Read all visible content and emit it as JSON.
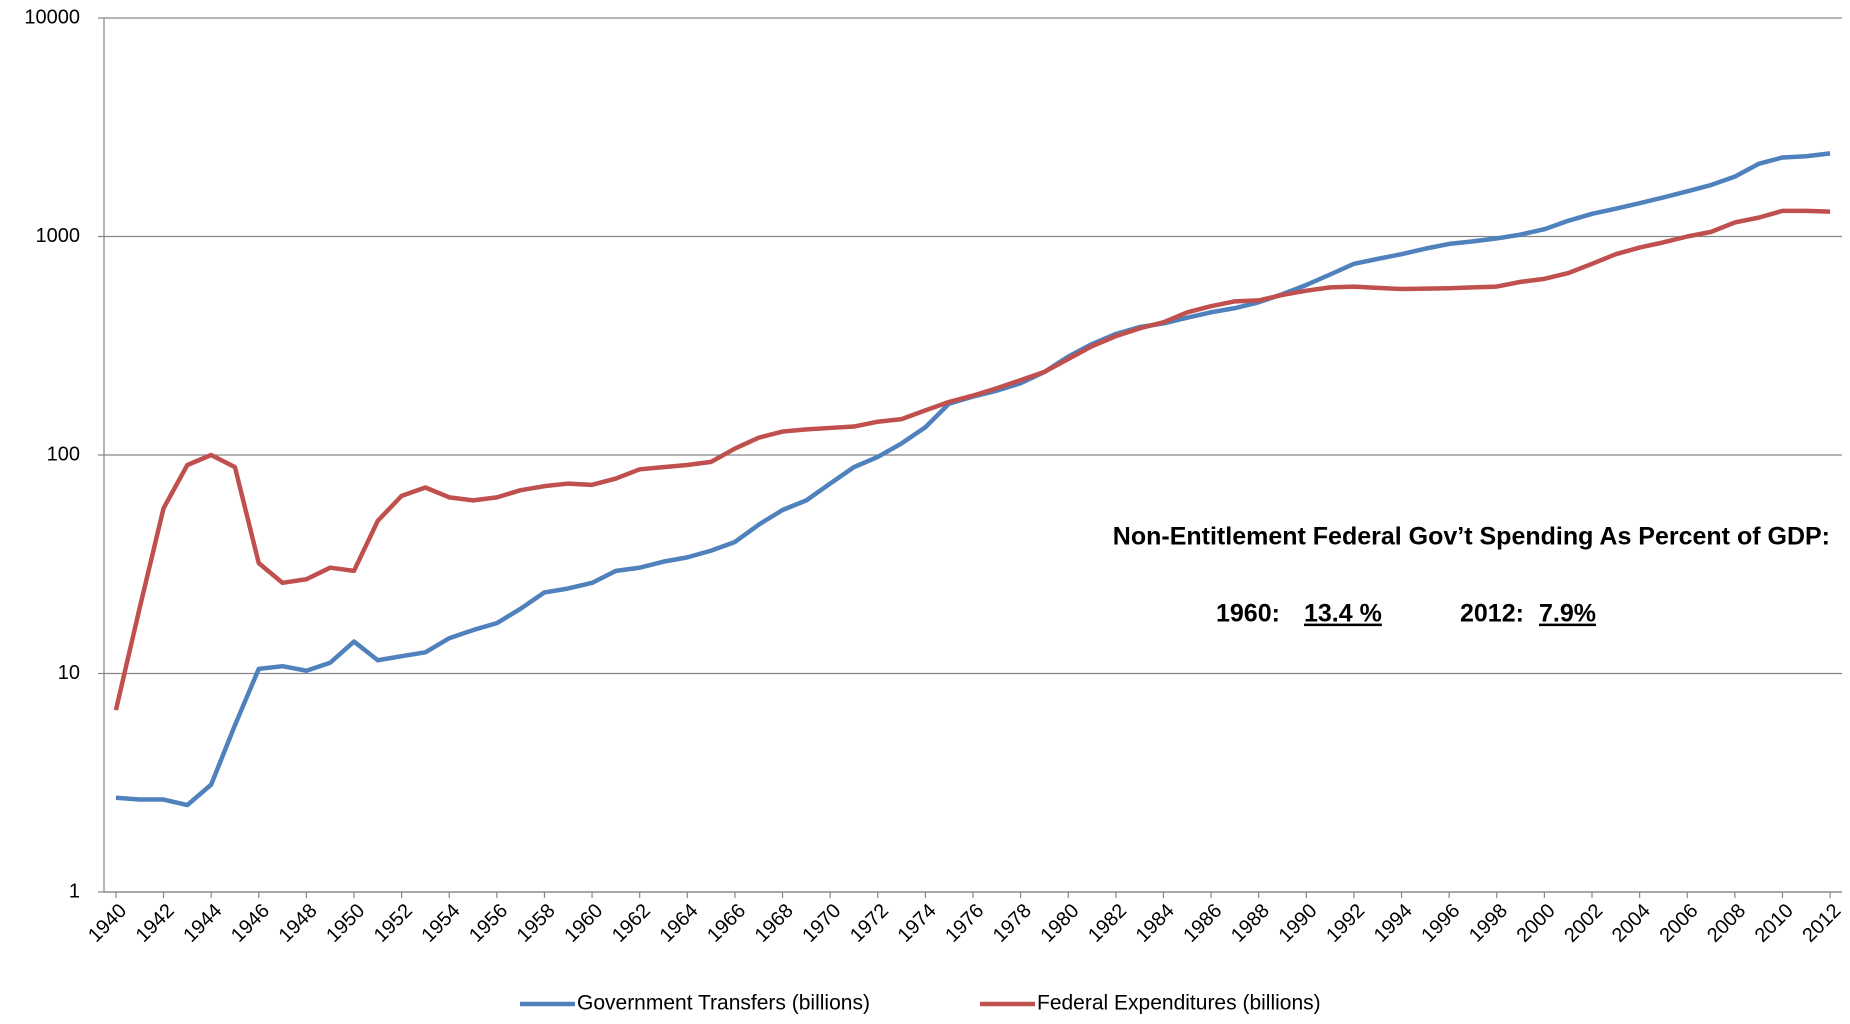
{
  "chart_data": {
    "type": "line",
    "x": [
      1940,
      1941,
      1942,
      1943,
      1944,
      1945,
      1946,
      1947,
      1948,
      1949,
      1950,
      1951,
      1952,
      1953,
      1954,
      1955,
      1956,
      1957,
      1958,
      1959,
      1960,
      1961,
      1962,
      1963,
      1964,
      1965,
      1966,
      1967,
      1968,
      1969,
      1970,
      1971,
      1972,
      1973,
      1974,
      1975,
      1976,
      1977,
      1978,
      1979,
      1980,
      1981,
      1982,
      1983,
      1984,
      1985,
      1986,
      1987,
      1988,
      1989,
      1990,
      1991,
      1992,
      1993,
      1994,
      1995,
      1996,
      1997,
      1998,
      1999,
      2000,
      2001,
      2002,
      2003,
      2004,
      2005,
      2006,
      2007,
      2008,
      2009,
      2010,
      2011,
      2012
    ],
    "series": [
      {
        "name": "Government Transfers (billions)",
        "color": "#4f81bd",
        "values": [
          2.7,
          2.65,
          2.65,
          2.5,
          3.1,
          5.8,
          10.5,
          10.8,
          10.3,
          11.2,
          14,
          11.5,
          12,
          12.5,
          14.5,
          15.8,
          17,
          19.8,
          23.5,
          24.5,
          26,
          29.5,
          30.5,
          32.5,
          34,
          36.5,
          40,
          48,
          56,
          62,
          74,
          88,
          98,
          113,
          134,
          172,
          185,
          197,
          213,
          240,
          282,
          322,
          358,
          385,
          400,
          425,
          450,
          470,
          500,
          545,
          600,
          670,
          750,
          790,
          830,
          880,
          925,
          950,
          980,
          1020,
          1080,
          1180,
          1270,
          1340,
          1420,
          1510,
          1610,
          1720,
          1880,
          2150,
          2300,
          2330,
          2400
        ]
      },
      {
        "name": "Federal Expenditures (billions)",
        "color": "#c0504d",
        "values": [
          6.8,
          20,
          57,
          90,
          100,
          88,
          32,
          26,
          27,
          30.5,
          29.5,
          50,
          65,
          71,
          64,
          62,
          64,
          69,
          72,
          74,
          73,
          78,
          86,
          88,
          90,
          93,
          107,
          120,
          128,
          131,
          133,
          135,
          142,
          146,
          160,
          175,
          187,
          202,
          220,
          240,
          275,
          315,
          350,
          380,
          405,
          450,
          480,
          505,
          510,
          540,
          565,
          585,
          590,
          582,
          575,
          577,
          580,
          585,
          590,
          620,
          640,
          680,
          750,
          830,
          890,
          940,
          1000,
          1050,
          1160,
          1220,
          1310,
          1310,
          1300
        ]
      }
    ],
    "xlim": [
      1939.5,
      2012.5
    ],
    "xticks": [
      1940,
      1942,
      1944,
      1946,
      1948,
      1950,
      1952,
      1954,
      1956,
      1958,
      1960,
      1962,
      1964,
      1966,
      1968,
      1970,
      1972,
      1974,
      1976,
      1978,
      1980,
      1982,
      1984,
      1986,
      1988,
      1990,
      1992,
      1994,
      1996,
      1998,
      2000,
      2002,
      2004,
      2006,
      2008,
      2010,
      2012
    ],
    "ylim": [
      1,
      10000
    ],
    "yticks": [
      1,
      10,
      100,
      1000,
      10000
    ],
    "log_scale": true,
    "grid": true,
    "legend": "bottom",
    "annotations": {
      "title": "Non-Entitlement Federal Gov’t Spending As Percent of GDP:",
      "label_1960": "1960:",
      "value_1960": "13.4 %",
      "label_2012": "2012:",
      "value_2012": "7.9%"
    }
  }
}
